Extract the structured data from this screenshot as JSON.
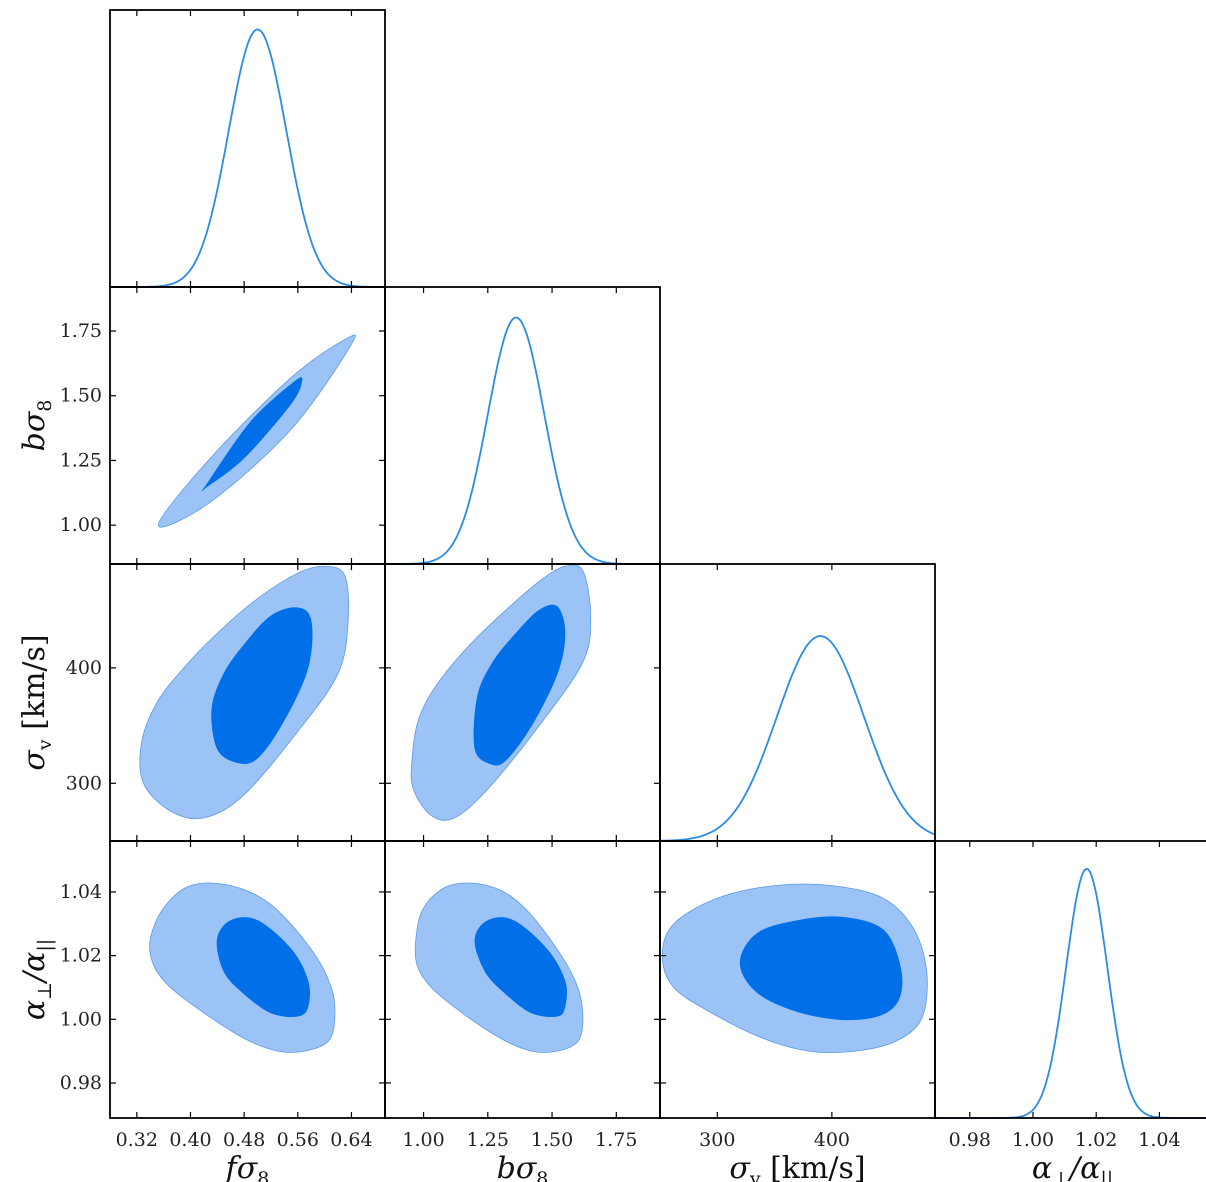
{
  "chart_data": {
    "type": "corner",
    "description_visible": "triangle plot of marginal and joint posterior contours",
    "colors": {
      "line": "#2a8be8",
      "inner_fill": "#006fe8",
      "outer_fill": "#9cc3f5",
      "outer_stroke": "#5b9be6"
    },
    "parameters": [
      {
        "id": "fs8",
        "label_main": "fσ",
        "label_sub": "8",
        "range": [
          0.28,
          0.69
        ],
        "ticks": [
          0.32,
          0.4,
          0.48,
          0.56,
          0.64
        ],
        "tick_labels": [
          "0.32",
          "0.40",
          "0.48",
          "0.56",
          "0.64"
        ],
        "mean": 0.5,
        "sigma": 0.043
      },
      {
        "id": "bs8",
        "label_main": "bσ",
        "label_sub": "8",
        "range": [
          0.85,
          1.92
        ],
        "ticks": [
          1.0,
          1.25,
          1.5,
          1.75
        ],
        "tick_labels": [
          "1.00",
          "1.25",
          "1.50",
          "1.75"
        ],
        "mean": 1.36,
        "sigma": 0.11
      },
      {
        "id": "sv",
        "label_main": "σ",
        "label_sub": "v",
        "label_suffix": " [km/s]",
        "range": [
          250,
          490
        ],
        "ticks": [
          300,
          400
        ],
        "tick_labels": [
          "300",
          "400"
        ],
        "mean": 390,
        "sigma": 38
      },
      {
        "id": "ar",
        "label_main": "α",
        "label_sub": "⊥",
        "label_mid": "/α",
        "label_sub2": "||",
        "range": [
          0.969,
          1.056
        ],
        "ticks": [
          0.98,
          1.0,
          1.02,
          1.04
        ],
        "tick_labels": [
          "0.98",
          "1.00",
          "1.02",
          "1.04"
        ],
        "mean": 1.017,
        "sigma": 0.0065
      }
    ],
    "marginal_peaks": [
      0.93,
      0.89,
      0.74,
      0.9
    ],
    "contours": [
      {
        "row": 1,
        "col": 0,
        "outer": [
          [
            0.352,
            1.0
          ],
          [
            0.43,
            1.09
          ],
          [
            0.55,
            1.37
          ],
          [
            0.638,
            1.69
          ],
          [
            0.632,
            1.72
          ],
          [
            0.55,
            1.57
          ],
          [
            0.43,
            1.26
          ],
          [
            0.352,
            1.0
          ]
        ],
        "inner": [
          [
            0.425,
            1.15
          ],
          [
            0.48,
            1.26
          ],
          [
            0.55,
            1.47
          ],
          [
            0.566,
            1.56
          ],
          [
            0.553,
            1.55
          ],
          [
            0.49,
            1.4
          ],
          [
            0.425,
            1.16
          ],
          [
            0.425,
            1.15
          ]
        ]
      },
      {
        "row": 2,
        "col": 0,
        "outer": [
          [
            0.33,
            300
          ],
          [
            0.37,
            276
          ],
          [
            0.42,
            270
          ],
          [
            0.48,
            290
          ],
          [
            0.56,
            345
          ],
          [
            0.62,
            395
          ],
          [
            0.635,
            440
          ],
          [
            0.63,
            480
          ],
          [
            0.6,
            488
          ],
          [
            0.56,
            482
          ],
          [
            0.5,
            460
          ],
          [
            0.44,
            430
          ],
          [
            0.39,
            400
          ],
          [
            0.35,
            370
          ],
          [
            0.327,
            335
          ],
          [
            0.33,
            300
          ]
        ],
        "inner": [
          [
            0.44,
            330
          ],
          [
            0.47,
            318
          ],
          [
            0.5,
            322
          ],
          [
            0.54,
            355
          ],
          [
            0.575,
            400
          ],
          [
            0.58,
            440
          ],
          [
            0.56,
            452
          ],
          [
            0.52,
            445
          ],
          [
            0.48,
            420
          ],
          [
            0.45,
            395
          ],
          [
            0.432,
            365
          ],
          [
            0.44,
            330
          ]
        ]
      },
      {
        "row": 2,
        "col": 1,
        "outer": [
          [
            0.96,
            295
          ],
          [
            1.03,
            272
          ],
          [
            1.12,
            270
          ],
          [
            1.25,
            295
          ],
          [
            1.45,
            350
          ],
          [
            1.62,
            405
          ],
          [
            1.65,
            445
          ],
          [
            1.62,
            484
          ],
          [
            1.55,
            488
          ],
          [
            1.45,
            475
          ],
          [
            1.32,
            450
          ],
          [
            1.18,
            420
          ],
          [
            1.05,
            385
          ],
          [
            0.98,
            355
          ],
          [
            0.955,
            320
          ],
          [
            0.96,
            295
          ]
        ],
        "inner": [
          [
            1.2,
            330
          ],
          [
            1.26,
            317
          ],
          [
            1.32,
            320
          ],
          [
            1.42,
            350
          ],
          [
            1.52,
            395
          ],
          [
            1.55,
            430
          ],
          [
            1.52,
            453
          ],
          [
            1.45,
            450
          ],
          [
            1.36,
            430
          ],
          [
            1.27,
            405
          ],
          [
            1.21,
            375
          ],
          [
            1.2,
            330
          ]
        ]
      },
      {
        "row": 3,
        "col": 0,
        "outer": [
          [
            0.34,
            1.025
          ],
          [
            0.36,
            1.035
          ],
          [
            0.4,
            1.042
          ],
          [
            0.46,
            1.042
          ],
          [
            0.52,
            1.036
          ],
          [
            0.58,
            1.022
          ],
          [
            0.61,
            1.01
          ],
          [
            0.615,
            1.0
          ],
          [
            0.605,
            0.993
          ],
          [
            0.57,
            0.99
          ],
          [
            0.53,
            0.99
          ],
          [
            0.48,
            0.994
          ],
          [
            0.42,
            1.002
          ],
          [
            0.37,
            1.01
          ],
          [
            0.345,
            1.017
          ],
          [
            0.34,
            1.025
          ]
        ],
        "inner": [
          [
            0.44,
            1.025
          ],
          [
            0.46,
            1.031
          ],
          [
            0.5,
            1.031
          ],
          [
            0.55,
            1.022
          ],
          [
            0.575,
            1.012
          ],
          [
            0.575,
            1.004
          ],
          [
            0.56,
            1.001
          ],
          [
            0.52,
            1.002
          ],
          [
            0.48,
            1.008
          ],
          [
            0.45,
            1.015
          ],
          [
            0.44,
            1.025
          ]
        ]
      },
      {
        "row": 3,
        "col": 1,
        "outer": [
          [
            0.97,
            1.025
          ],
          [
            1.0,
            1.035
          ],
          [
            1.1,
            1.042
          ],
          [
            1.25,
            1.042
          ],
          [
            1.38,
            1.036
          ],
          [
            1.52,
            1.022
          ],
          [
            1.6,
            1.01
          ],
          [
            1.62,
            1.0
          ],
          [
            1.6,
            0.993
          ],
          [
            1.52,
            0.99
          ],
          [
            1.42,
            0.99
          ],
          [
            1.3,
            0.994
          ],
          [
            1.15,
            1.002
          ],
          [
            1.03,
            1.01
          ],
          [
            0.975,
            1.017
          ],
          [
            0.97,
            1.025
          ]
        ],
        "inner": [
          [
            1.2,
            1.025
          ],
          [
            1.25,
            1.031
          ],
          [
            1.35,
            1.031
          ],
          [
            1.48,
            1.022
          ],
          [
            1.55,
            1.012
          ],
          [
            1.55,
            1.004
          ],
          [
            1.52,
            1.001
          ],
          [
            1.42,
            1.002
          ],
          [
            1.32,
            1.008
          ],
          [
            1.24,
            1.015
          ],
          [
            1.2,
            1.025
          ]
        ]
      },
      {
        "row": 3,
        "col": 2,
        "outer": [
          [
            252,
            1.02
          ],
          [
            262,
            1.03
          ],
          [
            300,
            1.038
          ],
          [
            350,
            1.042
          ],
          [
            400,
            1.042
          ],
          [
            445,
            1.038
          ],
          [
            472,
            1.028
          ],
          [
            483,
            1.014
          ],
          [
            478,
            1.0
          ],
          [
            455,
            0.993
          ],
          [
            420,
            0.99
          ],
          [
            380,
            0.99
          ],
          [
            340,
            0.994
          ],
          [
            295,
            1.002
          ],
          [
            262,
            1.01
          ],
          [
            252,
            1.02
          ]
        ],
        "inner": [
          [
            320,
            1.018
          ],
          [
            335,
            1.027
          ],
          [
            370,
            1.031
          ],
          [
            410,
            1.032
          ],
          [
            445,
            1.028
          ],
          [
            460,
            1.016
          ],
          [
            458,
            1.006
          ],
          [
            440,
            1.001
          ],
          [
            405,
            1.0
          ],
          [
            365,
            1.003
          ],
          [
            333,
            1.009
          ],
          [
            320,
            1.018
          ]
        ]
      }
    ]
  }
}
